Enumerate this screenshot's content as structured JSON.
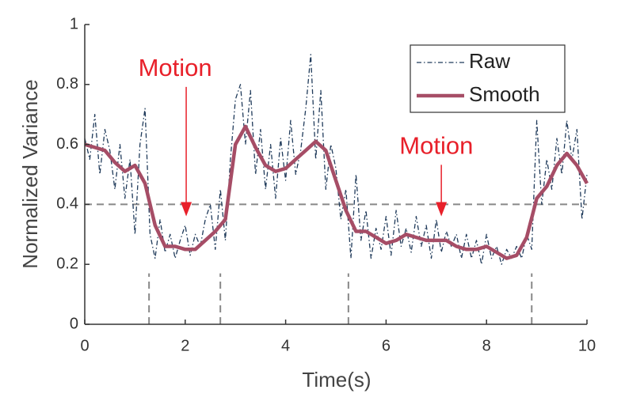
{
  "chart_data": {
    "type": "line",
    "xlabel": "Time(s)",
    "ylabel": "Normalized Variance",
    "xlim": [
      0,
      10
    ],
    "xticks": [
      0,
      2,
      4,
      6,
      8,
      10
    ],
    "ylim": [
      0,
      1
    ],
    "yticks": [
      0,
      0.2,
      0.4,
      0.6,
      0.8,
      1
    ],
    "legend": "upper right",
    "threshold": 0.4,
    "boundaries": [
      1.28,
      2.7,
      5.25,
      8.9
    ],
    "boundary_top": 0.17,
    "annotations": [
      {
        "text": "Motion",
        "x": 2.02,
        "y": 0.36,
        "text_x": 1.8,
        "text_y": 0.85
      },
      {
        "text": "Motion",
        "x": 7.1,
        "y": 0.36,
        "text_x": 7.0,
        "text_y": 0.59
      }
    ],
    "series": [
      {
        "name": "Raw",
        "color": "#1f3a5a",
        "style": "dashdot",
        "x": [
          0,
          0.1,
          0.2,
          0.3,
          0.4,
          0.5,
          0.6,
          0.7,
          0.8,
          0.9,
          1,
          1.1,
          1.2,
          1.3,
          1.4,
          1.5,
          1.6,
          1.7,
          1.8,
          1.9,
          2,
          2.1,
          2.2,
          2.3,
          2.4,
          2.5,
          2.6,
          2.7,
          2.8,
          2.9,
          3,
          3.1,
          3.2,
          3.3,
          3.4,
          3.5,
          3.6,
          3.7,
          3.8,
          3.9,
          4,
          4.1,
          4.2,
          4.3,
          4.4,
          4.5,
          4.6,
          4.7,
          4.8,
          4.9,
          5,
          5.1,
          5.2,
          5.3,
          5.4,
          5.5,
          5.6,
          5.7,
          5.8,
          5.9,
          6,
          6.1,
          6.2,
          6.3,
          6.4,
          6.5,
          6.6,
          6.7,
          6.8,
          6.9,
          7,
          7.1,
          7.2,
          7.3,
          7.4,
          7.5,
          7.6,
          7.7,
          7.8,
          7.9,
          8,
          8.1,
          8.2,
          8.3,
          8.4,
          8.5,
          8.6,
          8.7,
          8.8,
          8.9,
          9,
          9.1,
          9.2,
          9.3,
          9.4,
          9.5,
          9.6,
          9.7,
          9.8,
          9.9,
          10
        ],
        "values": [
          0.62,
          0.55,
          0.7,
          0.5,
          0.65,
          0.58,
          0.45,
          0.6,
          0.42,
          0.55,
          0.3,
          0.6,
          0.72,
          0.3,
          0.22,
          0.35,
          0.24,
          0.3,
          0.22,
          0.28,
          0.33,
          0.23,
          0.3,
          0.26,
          0.35,
          0.4,
          0.25,
          0.45,
          0.28,
          0.55,
          0.75,
          0.8,
          0.6,
          0.78,
          0.5,
          0.65,
          0.45,
          0.6,
          0.42,
          0.62,
          0.48,
          0.68,
          0.5,
          0.58,
          0.72,
          0.9,
          0.55,
          0.78,
          0.45,
          0.6,
          0.52,
          0.35,
          0.45,
          0.22,
          0.5,
          0.28,
          0.38,
          0.22,
          0.32,
          0.25,
          0.36,
          0.23,
          0.38,
          0.26,
          0.32,
          0.24,
          0.36,
          0.26,
          0.33,
          0.22,
          0.35,
          0.24,
          0.31,
          0.26,
          0.3,
          0.22,
          0.3,
          0.22,
          0.28,
          0.2,
          0.3,
          0.22,
          0.26,
          0.2,
          0.25,
          0.22,
          0.26,
          0.22,
          0.3,
          0.25,
          0.68,
          0.4,
          0.55,
          0.45,
          0.62,
          0.5,
          0.68,
          0.55,
          0.65,
          0.35,
          0.5
        ]
      },
      {
        "name": "Smooth",
        "color": "#a64d66",
        "style": "solid",
        "x": [
          0,
          0.2,
          0.4,
          0.6,
          0.8,
          1,
          1.2,
          1.4,
          1.6,
          1.8,
          2,
          2.2,
          2.4,
          2.6,
          2.8,
          3,
          3.2,
          3.4,
          3.6,
          3.8,
          4,
          4.2,
          4.4,
          4.6,
          4.8,
          5,
          5.2,
          5.4,
          5.6,
          5.8,
          6,
          6.2,
          6.4,
          6.6,
          6.8,
          7,
          7.2,
          7.4,
          7.6,
          7.8,
          8,
          8.2,
          8.4,
          8.6,
          8.8,
          9,
          9.2,
          9.4,
          9.6,
          9.8,
          10
        ],
        "values": [
          0.6,
          0.59,
          0.58,
          0.54,
          0.51,
          0.53,
          0.47,
          0.33,
          0.26,
          0.26,
          0.25,
          0.25,
          0.28,
          0.31,
          0.35,
          0.6,
          0.66,
          0.59,
          0.53,
          0.51,
          0.52,
          0.55,
          0.58,
          0.61,
          0.58,
          0.48,
          0.38,
          0.31,
          0.31,
          0.29,
          0.27,
          0.28,
          0.3,
          0.29,
          0.28,
          0.28,
          0.28,
          0.26,
          0.25,
          0.25,
          0.26,
          0.24,
          0.22,
          0.23,
          0.29,
          0.42,
          0.46,
          0.53,
          0.57,
          0.53,
          0.47
        ]
      }
    ]
  }
}
